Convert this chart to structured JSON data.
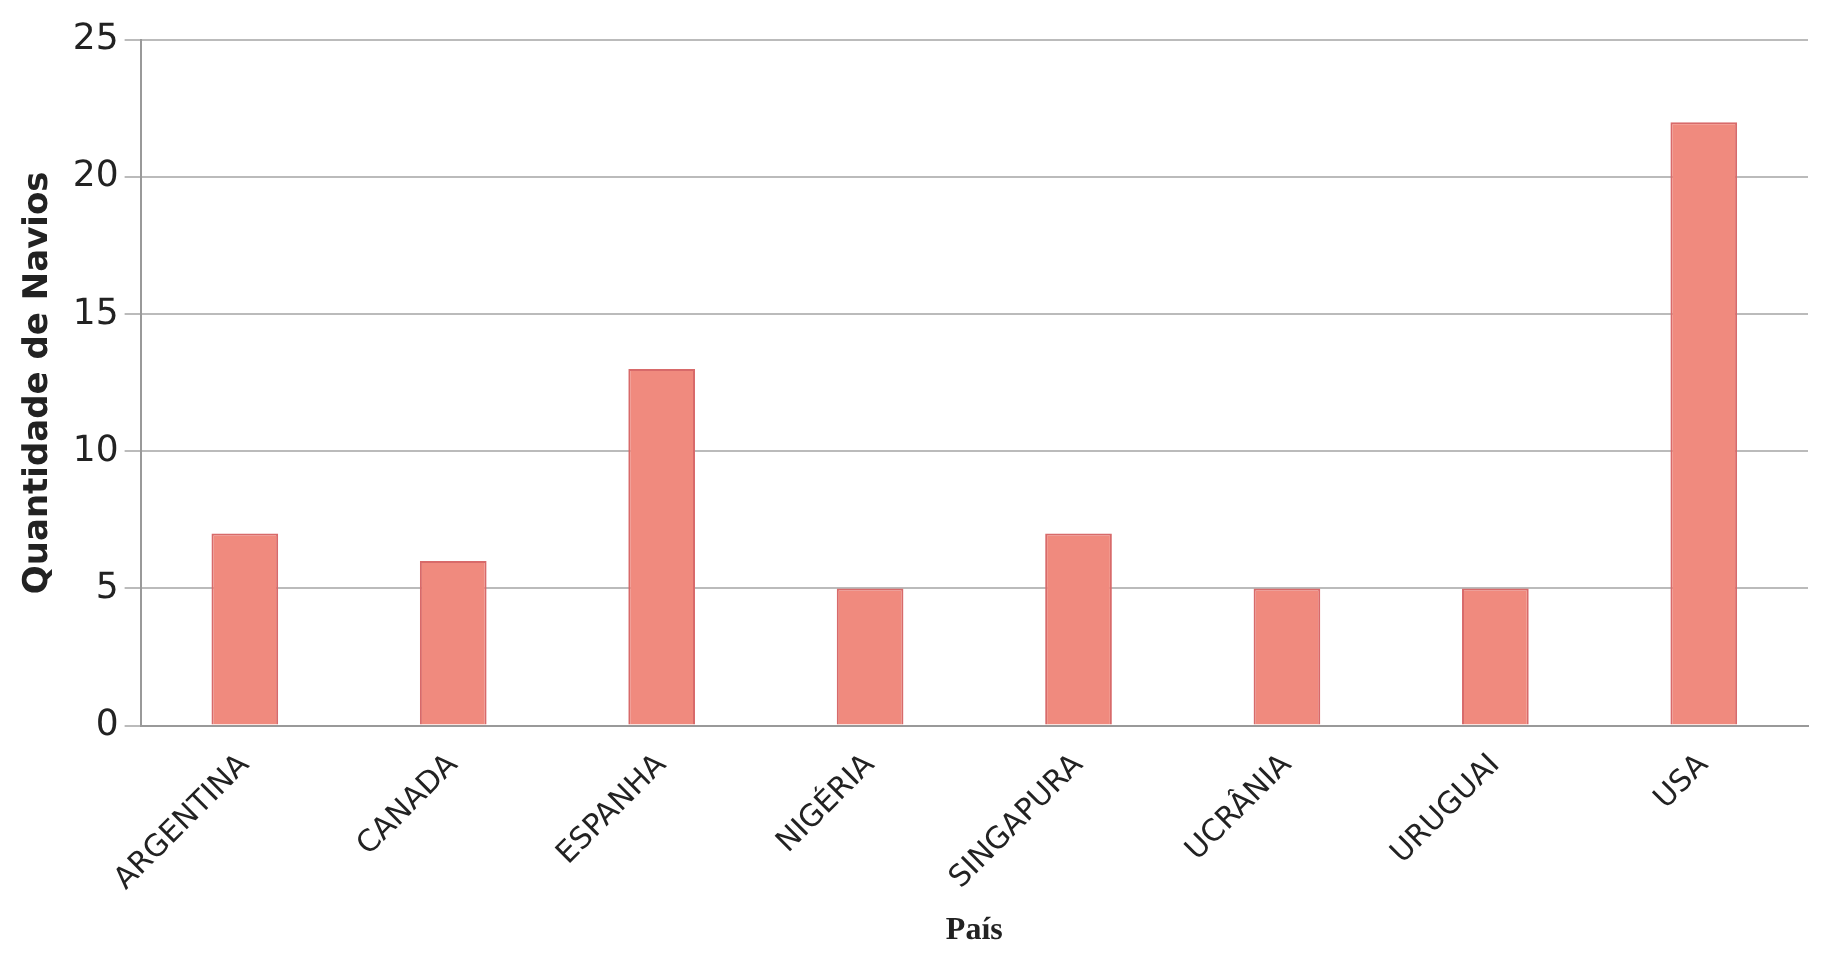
{
  "chart_data": {
    "type": "bar",
    "xlabel": "País",
    "ylabel": "Quantidade de Navios",
    "categories": [
      "ARGENTINA",
      "CANADA",
      "ESPANHA",
      "NIGÉRIA",
      "SINGAPURA",
      "UCRÂNIA",
      "URUGUAI",
      "USA"
    ],
    "values": [
      7,
      6,
      13,
      5,
      7,
      5,
      5,
      22
    ],
    "color": "#f08a7e",
    "ylim": [
      0,
      25
    ],
    "yticks": [
      0,
      5,
      10,
      15,
      20,
      25
    ],
    "grid": "y",
    "legend": false
  }
}
